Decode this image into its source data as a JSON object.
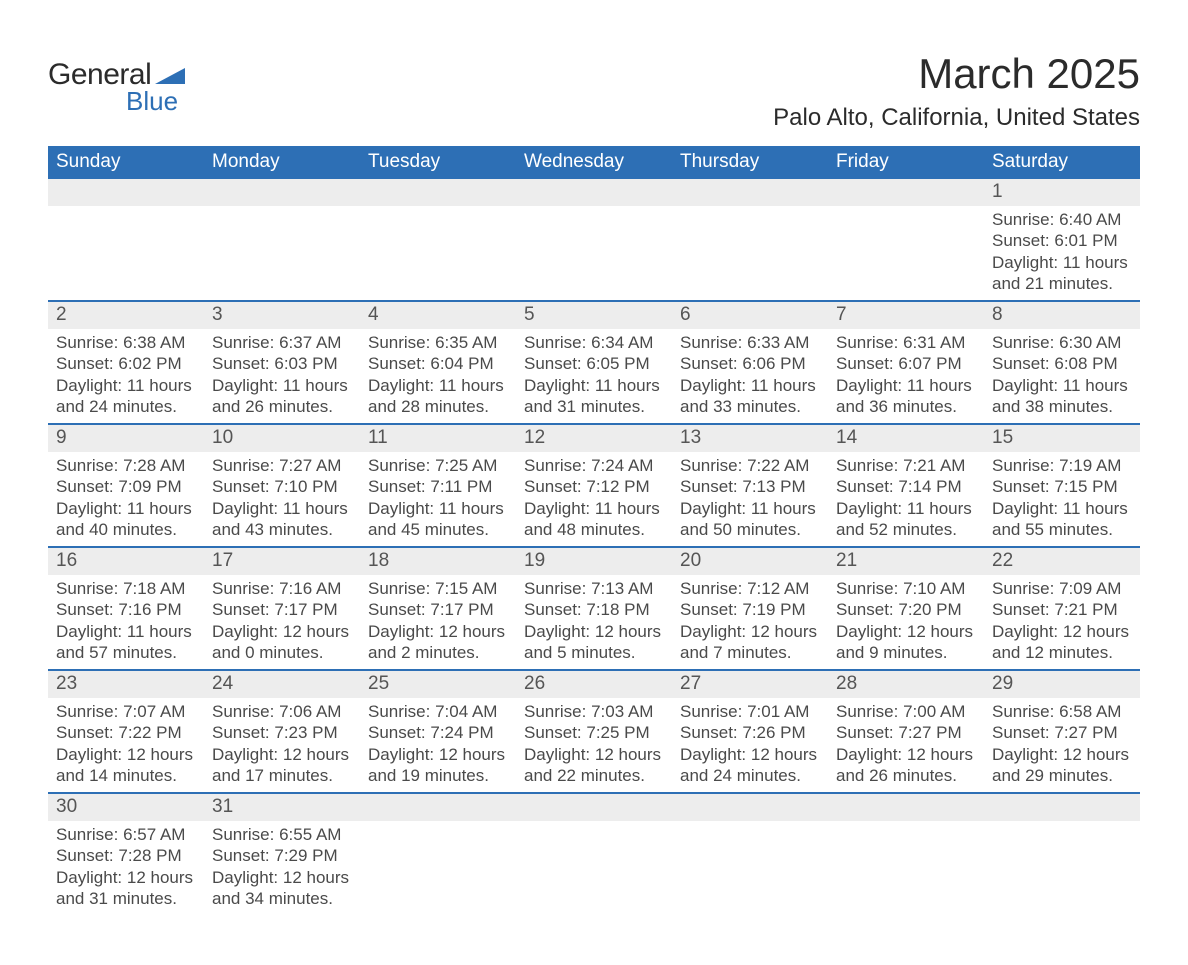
{
  "logo": {
    "text_general": "General",
    "text_blue": "Blue",
    "brand_color": "#2d6fb5",
    "text_color": "#2b2b2b"
  },
  "header": {
    "title": "March 2025",
    "location": "Palo Alto, California, United States"
  },
  "calendar": {
    "header_bg": "#2d6fb5",
    "header_fg": "#ffffff",
    "row_divider_color": "#2d6fb5",
    "daynum_bg": "#ededed",
    "body_text_color": "#4a4a4a",
    "day_headers": [
      "Sunday",
      "Monday",
      "Tuesday",
      "Wednesday",
      "Thursday",
      "Friday",
      "Saturday"
    ],
    "weeks": [
      [
        {
          "day": "",
          "sunrise": "",
          "sunset": "",
          "daylight1": "",
          "daylight2": ""
        },
        {
          "day": "",
          "sunrise": "",
          "sunset": "",
          "daylight1": "",
          "daylight2": ""
        },
        {
          "day": "",
          "sunrise": "",
          "sunset": "",
          "daylight1": "",
          "daylight2": ""
        },
        {
          "day": "",
          "sunrise": "",
          "sunset": "",
          "daylight1": "",
          "daylight2": ""
        },
        {
          "day": "",
          "sunrise": "",
          "sunset": "",
          "daylight1": "",
          "daylight2": ""
        },
        {
          "day": "",
          "sunrise": "",
          "sunset": "",
          "daylight1": "",
          "daylight2": ""
        },
        {
          "day": "1",
          "sunrise": "Sunrise: 6:40 AM",
          "sunset": "Sunset: 6:01 PM",
          "daylight1": "Daylight: 11 hours",
          "daylight2": "and 21 minutes."
        }
      ],
      [
        {
          "day": "2",
          "sunrise": "Sunrise: 6:38 AM",
          "sunset": "Sunset: 6:02 PM",
          "daylight1": "Daylight: 11 hours",
          "daylight2": "and 24 minutes."
        },
        {
          "day": "3",
          "sunrise": "Sunrise: 6:37 AM",
          "sunset": "Sunset: 6:03 PM",
          "daylight1": "Daylight: 11 hours",
          "daylight2": "and 26 minutes."
        },
        {
          "day": "4",
          "sunrise": "Sunrise: 6:35 AM",
          "sunset": "Sunset: 6:04 PM",
          "daylight1": "Daylight: 11 hours",
          "daylight2": "and 28 minutes."
        },
        {
          "day": "5",
          "sunrise": "Sunrise: 6:34 AM",
          "sunset": "Sunset: 6:05 PM",
          "daylight1": "Daylight: 11 hours",
          "daylight2": "and 31 minutes."
        },
        {
          "day": "6",
          "sunrise": "Sunrise: 6:33 AM",
          "sunset": "Sunset: 6:06 PM",
          "daylight1": "Daylight: 11 hours",
          "daylight2": "and 33 minutes."
        },
        {
          "day": "7",
          "sunrise": "Sunrise: 6:31 AM",
          "sunset": "Sunset: 6:07 PM",
          "daylight1": "Daylight: 11 hours",
          "daylight2": "and 36 minutes."
        },
        {
          "day": "8",
          "sunrise": "Sunrise: 6:30 AM",
          "sunset": "Sunset: 6:08 PM",
          "daylight1": "Daylight: 11 hours",
          "daylight2": "and 38 minutes."
        }
      ],
      [
        {
          "day": "9",
          "sunrise": "Sunrise: 7:28 AM",
          "sunset": "Sunset: 7:09 PM",
          "daylight1": "Daylight: 11 hours",
          "daylight2": "and 40 minutes."
        },
        {
          "day": "10",
          "sunrise": "Sunrise: 7:27 AM",
          "sunset": "Sunset: 7:10 PM",
          "daylight1": "Daylight: 11 hours",
          "daylight2": "and 43 minutes."
        },
        {
          "day": "11",
          "sunrise": "Sunrise: 7:25 AM",
          "sunset": "Sunset: 7:11 PM",
          "daylight1": "Daylight: 11 hours",
          "daylight2": "and 45 minutes."
        },
        {
          "day": "12",
          "sunrise": "Sunrise: 7:24 AM",
          "sunset": "Sunset: 7:12 PM",
          "daylight1": "Daylight: 11 hours",
          "daylight2": "and 48 minutes."
        },
        {
          "day": "13",
          "sunrise": "Sunrise: 7:22 AM",
          "sunset": "Sunset: 7:13 PM",
          "daylight1": "Daylight: 11 hours",
          "daylight2": "and 50 minutes."
        },
        {
          "day": "14",
          "sunrise": "Sunrise: 7:21 AM",
          "sunset": "Sunset: 7:14 PM",
          "daylight1": "Daylight: 11 hours",
          "daylight2": "and 52 minutes."
        },
        {
          "day": "15",
          "sunrise": "Sunrise: 7:19 AM",
          "sunset": "Sunset: 7:15 PM",
          "daylight1": "Daylight: 11 hours",
          "daylight2": "and 55 minutes."
        }
      ],
      [
        {
          "day": "16",
          "sunrise": "Sunrise: 7:18 AM",
          "sunset": "Sunset: 7:16 PM",
          "daylight1": "Daylight: 11 hours",
          "daylight2": "and 57 minutes."
        },
        {
          "day": "17",
          "sunrise": "Sunrise: 7:16 AM",
          "sunset": "Sunset: 7:17 PM",
          "daylight1": "Daylight: 12 hours",
          "daylight2": "and 0 minutes."
        },
        {
          "day": "18",
          "sunrise": "Sunrise: 7:15 AM",
          "sunset": "Sunset: 7:17 PM",
          "daylight1": "Daylight: 12 hours",
          "daylight2": "and 2 minutes."
        },
        {
          "day": "19",
          "sunrise": "Sunrise: 7:13 AM",
          "sunset": "Sunset: 7:18 PM",
          "daylight1": "Daylight: 12 hours",
          "daylight2": "and 5 minutes."
        },
        {
          "day": "20",
          "sunrise": "Sunrise: 7:12 AM",
          "sunset": "Sunset: 7:19 PM",
          "daylight1": "Daylight: 12 hours",
          "daylight2": "and 7 minutes."
        },
        {
          "day": "21",
          "sunrise": "Sunrise: 7:10 AM",
          "sunset": "Sunset: 7:20 PM",
          "daylight1": "Daylight: 12 hours",
          "daylight2": "and 9 minutes."
        },
        {
          "day": "22",
          "sunrise": "Sunrise: 7:09 AM",
          "sunset": "Sunset: 7:21 PM",
          "daylight1": "Daylight: 12 hours",
          "daylight2": "and 12 minutes."
        }
      ],
      [
        {
          "day": "23",
          "sunrise": "Sunrise: 7:07 AM",
          "sunset": "Sunset: 7:22 PM",
          "daylight1": "Daylight: 12 hours",
          "daylight2": "and 14 minutes."
        },
        {
          "day": "24",
          "sunrise": "Sunrise: 7:06 AM",
          "sunset": "Sunset: 7:23 PM",
          "daylight1": "Daylight: 12 hours",
          "daylight2": "and 17 minutes."
        },
        {
          "day": "25",
          "sunrise": "Sunrise: 7:04 AM",
          "sunset": "Sunset: 7:24 PM",
          "daylight1": "Daylight: 12 hours",
          "daylight2": "and 19 minutes."
        },
        {
          "day": "26",
          "sunrise": "Sunrise: 7:03 AM",
          "sunset": "Sunset: 7:25 PM",
          "daylight1": "Daylight: 12 hours",
          "daylight2": "and 22 minutes."
        },
        {
          "day": "27",
          "sunrise": "Sunrise: 7:01 AM",
          "sunset": "Sunset: 7:26 PM",
          "daylight1": "Daylight: 12 hours",
          "daylight2": "and 24 minutes."
        },
        {
          "day": "28",
          "sunrise": "Sunrise: 7:00 AM",
          "sunset": "Sunset: 7:27 PM",
          "daylight1": "Daylight: 12 hours",
          "daylight2": "and 26 minutes."
        },
        {
          "day": "29",
          "sunrise": "Sunrise: 6:58 AM",
          "sunset": "Sunset: 7:27 PM",
          "daylight1": "Daylight: 12 hours",
          "daylight2": "and 29 minutes."
        }
      ],
      [
        {
          "day": "30",
          "sunrise": "Sunrise: 6:57 AM",
          "sunset": "Sunset: 7:28 PM",
          "daylight1": "Daylight: 12 hours",
          "daylight2": "and 31 minutes."
        },
        {
          "day": "31",
          "sunrise": "Sunrise: 6:55 AM",
          "sunset": "Sunset: 7:29 PM",
          "daylight1": "Daylight: 12 hours",
          "daylight2": "and 34 minutes."
        },
        {
          "day": "",
          "sunrise": "",
          "sunset": "",
          "daylight1": "",
          "daylight2": ""
        },
        {
          "day": "",
          "sunrise": "",
          "sunset": "",
          "daylight1": "",
          "daylight2": ""
        },
        {
          "day": "",
          "sunrise": "",
          "sunset": "",
          "daylight1": "",
          "daylight2": ""
        },
        {
          "day": "",
          "sunrise": "",
          "sunset": "",
          "daylight1": "",
          "daylight2": ""
        },
        {
          "day": "",
          "sunrise": "",
          "sunset": "",
          "daylight1": "",
          "daylight2": ""
        }
      ]
    ]
  }
}
